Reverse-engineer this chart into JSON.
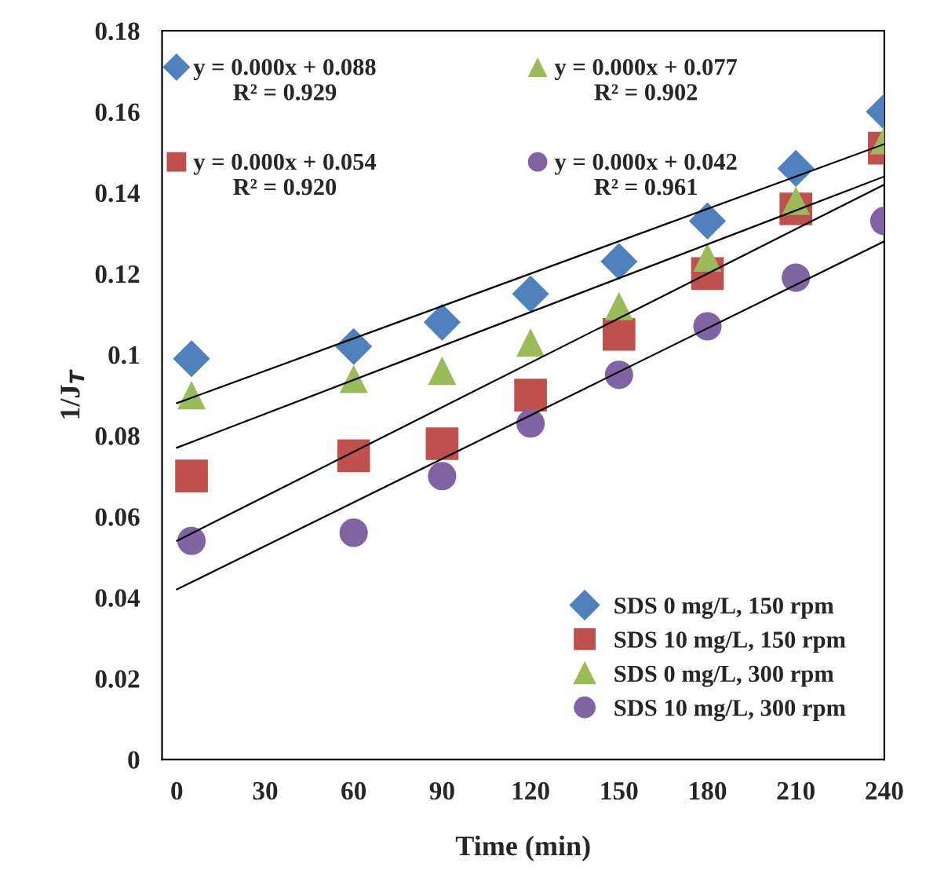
{
  "chart_data": {
    "type": "scatter",
    "xlabel": "Time (min)",
    "ylabel": "1/J$_{T}$",
    "xlim": [
      -5,
      240
    ],
    "xticks": [
      0,
      30,
      60,
      90,
      120,
      150,
      180,
      210,
      240
    ],
    "ylim": [
      0,
      0.18
    ],
    "yticks": [
      0,
      0.02,
      0.04,
      0.06,
      0.08,
      0.1,
      0.12,
      0.14,
      0.16,
      0.18
    ],
    "grid": false,
    "legend": "bottom right",
    "series": [
      {
        "name": "SDS 0 mg/L, 150 rpm",
        "color": "#4f81bd",
        "marker": "diamond",
        "x": [
          5,
          60,
          90,
          120,
          150,
          180,
          210,
          240
        ],
        "values": [
          0.099,
          0.102,
          0.108,
          0.115,
          0.123,
          0.133,
          0.146,
          0.16
        ]
      },
      {
        "name": "SDS 10 mg/L, 150 rpm",
        "color": "#c0504d",
        "marker": "square",
        "x": [
          5,
          60,
          90,
          120,
          150,
          180,
          210,
          240
        ],
        "values": [
          0.07,
          0.075,
          0.078,
          0.09,
          0.105,
          0.12,
          0.136,
          0.151
        ]
      },
      {
        "name": "SDS 0 mg/L, 300 rpm",
        "color": "#9bbb59",
        "marker": "triangle",
        "x": [
          5,
          60,
          90,
          120,
          150,
          180,
          210,
          240
        ],
        "values": [
          0.09,
          0.094,
          0.096,
          0.103,
          0.112,
          0.124,
          0.138,
          0.153
        ]
      },
      {
        "name": "SDS 10 mg/L, 300 rpm",
        "color": "#8064a2",
        "marker": "circle",
        "x": [
          5,
          60,
          90,
          120,
          150,
          180,
          210,
          240
        ],
        "values": [
          0.054,
          0.056,
          0.07,
          0.083,
          0.095,
          0.107,
          0.119,
          0.133
        ]
      },
      {
        "type": "line",
        "color": "#000000",
        "marker": "none",
        "x": [
          0,
          240
        ],
        "values": [
          0.088,
          0.152
        ]
      },
      {
        "type": "line",
        "color": "#000000",
        "marker": "none",
        "x": [
          0,
          240
        ],
        "values": [
          0.054,
          0.142
        ]
      },
      {
        "type": "line",
        "color": "#000000",
        "marker": "none",
        "x": [
          0,
          240
        ],
        "values": [
          0.077,
          0.144
        ]
      },
      {
        "type": "line",
        "color": "#000000",
        "marker": "none",
        "x": [
          0,
          240
        ],
        "values": [
          0.042,
          0.128
        ]
      }
    ],
    "annotations": [
      "y = 0.000x + 0.088\nR² = 0.929",
      "y = 0.000x + 0.077\nR² = 0.902",
      "y = 0.000x + 0.054\nR² = 0.920",
      "y = 0.000x + 0.042\nR² = 0.961"
    ]
  }
}
